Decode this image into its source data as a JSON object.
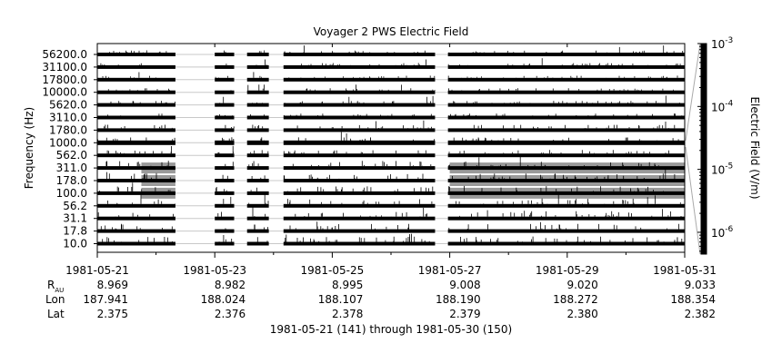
{
  "chart_data": {
    "type": "heatmap",
    "title": "Voyager 2 PWS Electric Field",
    "ylabel": "Frequency (Hz)",
    "colorbar_label": "Electric Field (V/m)",
    "colorbar_scale": "log",
    "colorbar_range": [
      4.5e-07,
      0.001
    ],
    "colorbar_ticks": [
      "10",
      "10",
      "10",
      "10"
    ],
    "colorbar_exponents": [
      "-3",
      "-4",
      "-5",
      "-6"
    ],
    "colorbar_tick_values": [
      0.001,
      0.0001,
      1e-05,
      1e-06
    ],
    "channels": [
      "56200.0",
      "31100.0",
      "17800.0",
      "10000.0",
      "5620.0",
      "3110.0",
      "1780.0",
      "1000.0",
      "562.0",
      "311.0",
      "178.0",
      "100.0",
      "56.2",
      "31.1",
      "17.8",
      "10.0"
    ],
    "x_range": [
      "1981-05-21",
      "1981-05-31"
    ],
    "x_ticks": [
      "1981-05-21",
      "1981-05-23",
      "1981-05-25",
      "1981-05-27",
      "1981-05-29",
      "1981-05-31"
    ],
    "data_segments_days": [
      [
        0.0,
        1.33
      ],
      [
        2.0,
        2.33
      ],
      [
        2.55,
        2.92
      ],
      [
        3.17,
        5.75
      ],
      [
        5.97,
        10.0
      ]
    ],
    "colors": {
      "trace": "#000000",
      "enhanced": "#9a9a9a",
      "gap": "#c8c8c8",
      "axis": "#000000"
    }
  },
  "ephemeris": {
    "row_labels": {
      "r": "R",
      "r_sub": "AU",
      "lon": "Lon",
      "lat": "Lat"
    },
    "r_au": [
      "8.969",
      "8.982",
      "8.995",
      "9.008",
      "9.020",
      "9.033"
    ],
    "lon": [
      "187.941",
      "188.024",
      "188.107",
      "188.190",
      "188.272",
      "188.354"
    ],
    "lat": [
      "2.375",
      "2.376",
      "2.378",
      "2.379",
      "2.380",
      "2.382"
    ]
  },
  "footer": "1981-05-21 (141) through 1981-05-30 (150)"
}
